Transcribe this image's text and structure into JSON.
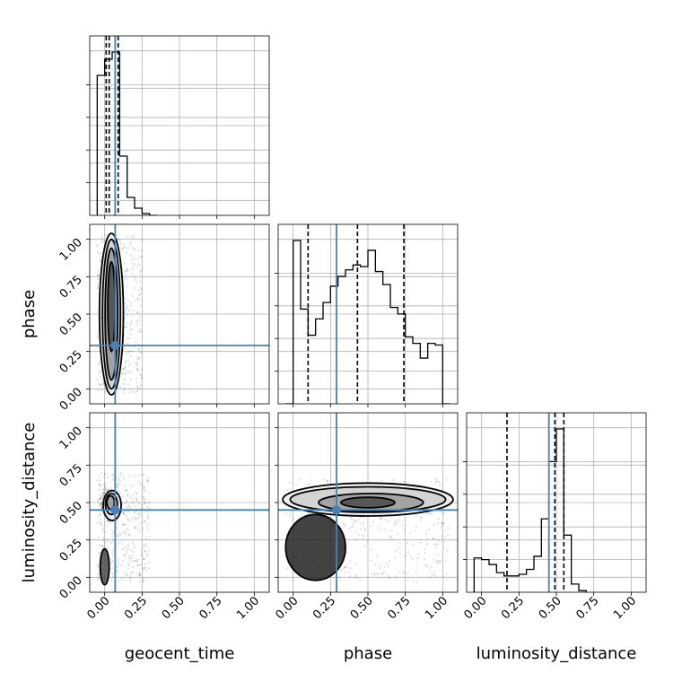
{
  "chart_data": {
    "type": "corner",
    "parameters": [
      "geocent_time",
      "phase",
      "luminosity_distance"
    ],
    "axis_range": [
      -0.1,
      1.1
    ],
    "ticks": [
      0.0,
      0.25,
      0.5,
      0.75,
      1.0
    ],
    "tick_labels": [
      "0.00",
      "0.25",
      "0.50",
      "0.75",
      "1.00"
    ],
    "grid": true,
    "colors": {
      "truth": "#4682b4",
      "hist": "#000000",
      "quantile": "#000000",
      "scatter": "#000000"
    },
    "truths": {
      "geocent_time": 0.07,
      "phase": 0.29,
      "luminosity_distance": 0.45
    },
    "quantiles": {
      "geocent_time": [
        0.01,
        0.03,
        0.09
      ],
      "phase": [
        0.1,
        0.43,
        0.74
      ],
      "luminosity_distance": [
        0.17,
        0.49,
        0.55
      ]
    },
    "histograms": {
      "geocent_time": {
        "edges": [
          -0.05,
          0.0,
          0.05,
          0.1,
          0.15,
          0.2,
          0.25,
          0.3,
          0.35
        ],
        "counts": [
          0.78,
          0.87,
          0.91,
          0.33,
          0.1,
          0.04,
          0.01,
          0.0
        ]
      },
      "phase": {
        "edges": [
          -0.05,
          0.0,
          0.05,
          0.1,
          0.15,
          0.2,
          0.25,
          0.3,
          0.35,
          0.4,
          0.45,
          0.5,
          0.55,
          0.6,
          0.65,
          0.7,
          0.75,
          0.8,
          0.85,
          0.9,
          0.95,
          1.0,
          1.05
        ],
        "counts": [
          0.0,
          1.0,
          0.58,
          0.42,
          0.52,
          0.62,
          0.72,
          0.78,
          0.82,
          0.85,
          0.84,
          0.94,
          0.81,
          0.73,
          0.59,
          0.55,
          0.41,
          0.37,
          0.28,
          0.37,
          0.36,
          0.0
        ]
      },
      "luminosity_distance": {
        "edges": [
          -0.05,
          0.0,
          0.05,
          0.1,
          0.15,
          0.2,
          0.25,
          0.3,
          0.35,
          0.4,
          0.45,
          0.5,
          0.55,
          0.6,
          0.65,
          0.7
        ],
        "counts": [
          0.21,
          0.2,
          0.17,
          0.12,
          0.1,
          0.1,
          0.11,
          0.14,
          0.22,
          0.45,
          0.8,
          1.0,
          0.35,
          0.05,
          0.01
        ]
      }
    },
    "pairs": [
      {
        "x": "geocent_time",
        "y": "phase",
        "scatter_box": [
          -0.05,
          0.25,
          -0.03,
          1.03
        ],
        "core": [
          0.04,
          0.52,
          0.05,
          0.5
        ],
        "contours": [
          {
            "cx": 0.045,
            "cy": 0.5,
            "rx": 0.08,
            "ry": 0.54
          },
          {
            "cx": 0.045,
            "cy": 0.5,
            "rx": 0.06,
            "ry": 0.5
          },
          {
            "cx": 0.045,
            "cy": 0.5,
            "rx": 0.042,
            "ry": 0.44
          },
          {
            "cx": 0.045,
            "cy": 0.55,
            "rx": 0.024,
            "ry": 0.3
          }
        ]
      },
      {
        "x": "geocent_time",
        "y": "luminosity_distance",
        "scatter_box": [
          -0.05,
          0.3,
          -0.03,
          0.7
        ],
        "core": [
          0.04,
          0.5,
          0.05,
          0.07
        ],
        "contours": [
          {
            "cx": 0.05,
            "cy": 0.48,
            "rx": 0.06,
            "ry": 0.1
          },
          {
            "cx": 0.045,
            "cy": 0.49,
            "rx": 0.04,
            "ry": 0.07
          },
          {
            "cx": 0.04,
            "cy": 0.5,
            "rx": 0.025,
            "ry": 0.045
          },
          {
            "cx": 0.0,
            "cy": 0.07,
            "rx": 0.03,
            "ry": 0.12
          }
        ]
      },
      {
        "x": "phase",
        "y": "luminosity_distance",
        "scatter_box": [
          -0.05,
          1.05,
          -0.03,
          0.66
        ],
        "core": [
          0.5,
          0.5,
          0.45,
          0.06
        ],
        "contours": [
          {
            "cx": 0.5,
            "cy": 0.52,
            "rx": 0.57,
            "ry": 0.11
          },
          {
            "cx": 0.5,
            "cy": 0.52,
            "rx": 0.52,
            "ry": 0.085
          },
          {
            "cx": 0.52,
            "cy": 0.5,
            "rx": 0.35,
            "ry": 0.06
          },
          {
            "cx": 0.5,
            "cy": 0.5,
            "rx": 0.18,
            "ry": 0.035
          },
          {
            "cx": 0.15,
            "cy": 0.2,
            "rx": 0.2,
            "ry": 0.22
          }
        ]
      }
    ]
  }
}
